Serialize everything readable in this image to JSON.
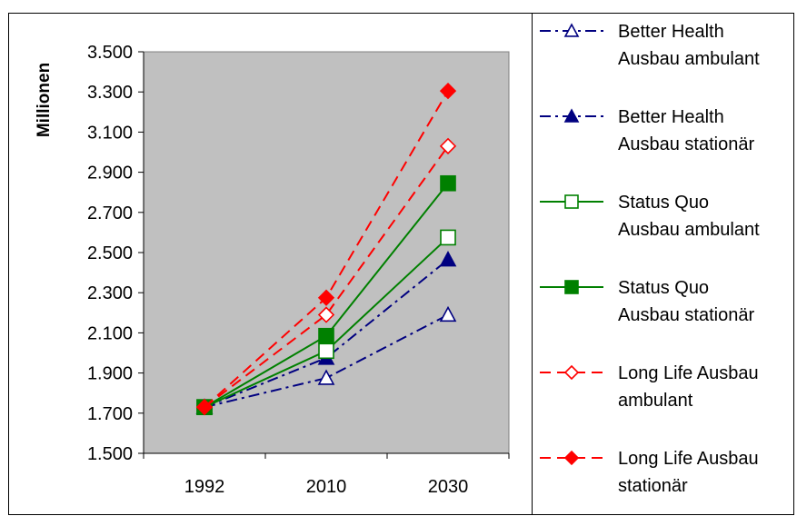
{
  "chart_data": {
    "type": "line",
    "title": "",
    "xlabel": "",
    "ylabel": "Millionen",
    "categories": [
      "1992",
      "2010",
      "2030"
    ],
    "ylim": [
      1500,
      3500
    ],
    "yticks": [
      "1.500",
      "1.700",
      "1.900",
      "2.100",
      "2.300",
      "2.500",
      "2.700",
      "2.900",
      "3.100",
      "3.300",
      "3.500"
    ],
    "grid": false,
    "plot_background": "#c0c0c0",
    "legend_position": "right",
    "series": [
      {
        "name": "Better Health Ausbau ambulant",
        "legend_lines": [
          "Better Health",
          "Ausbau ambulant"
        ],
        "values": [
          1730,
          1875,
          2190
        ],
        "color": "#000080",
        "dash": "dashdot",
        "marker": "triangle",
        "filled": false
      },
      {
        "name": "Better Health Ausbau stationär",
        "legend_lines": [
          "Better Health",
          "Ausbau stationär"
        ],
        "values": [
          1730,
          1975,
          2465
        ],
        "color": "#000080",
        "dash": "dashdot",
        "marker": "triangle",
        "filled": true
      },
      {
        "name": "Status Quo Ausbau ambulant",
        "legend_lines": [
          "Status Quo",
          "Ausbau ambulant"
        ],
        "values": [
          1730,
          2010,
          2575
        ],
        "color": "#008000",
        "dash": "solid",
        "marker": "square",
        "filled": false
      },
      {
        "name": "Status Quo Ausbau stationär",
        "legend_lines": [
          "Status Quo",
          "Ausbau stationär"
        ],
        "values": [
          1730,
          2085,
          2845
        ],
        "color": "#008000",
        "dash": "solid",
        "marker": "square",
        "filled": true
      },
      {
        "name": "Long Life Ausbau ambulant",
        "legend_lines": [
          "Long Life Ausbau",
          "ambulant"
        ],
        "values": [
          1730,
          2190,
          3030
        ],
        "color": "#ff0000",
        "dash": "dash",
        "marker": "diamond",
        "filled": false
      },
      {
        "name": "Long Life Ausbau stationär",
        "legend_lines": [
          "Long Life Ausbau",
          "stationär"
        ],
        "values": [
          1730,
          2275,
          3305
        ],
        "color": "#ff0000",
        "dash": "dash",
        "marker": "diamond",
        "filled": true
      }
    ]
  }
}
